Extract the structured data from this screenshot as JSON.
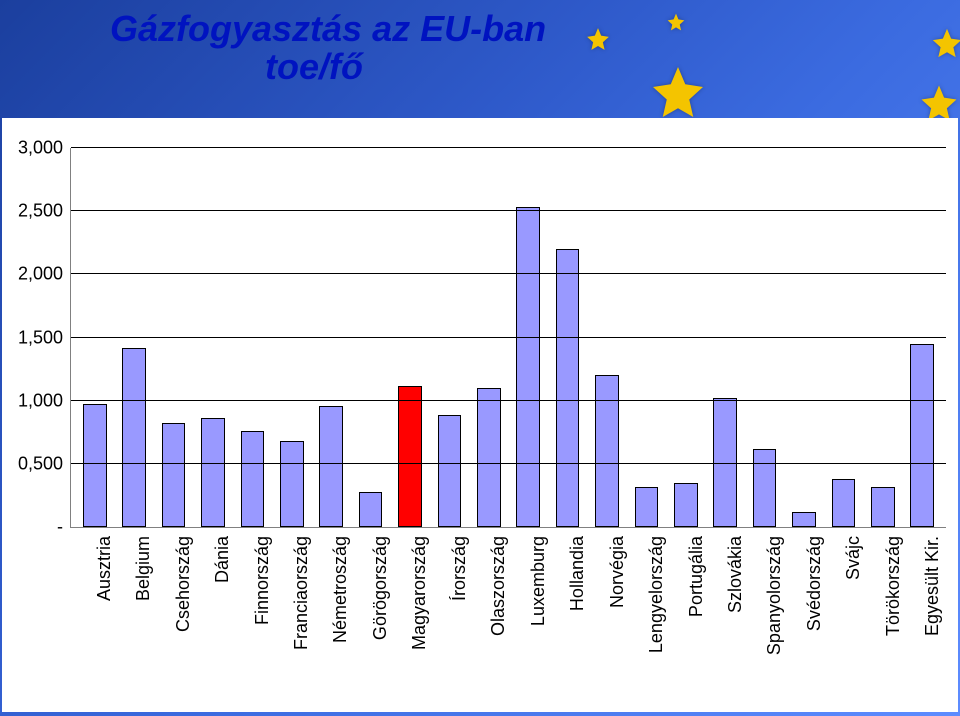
{
  "title_line1": "Gázfogyasztás az EU-ban",
  "title_line2": "toe/fő",
  "title_color": "#0013c0",
  "title_fontsize": 36,
  "chart": {
    "type": "bar",
    "ylim": [
      0,
      3.0
    ],
    "ytick_step": 0.5,
    "ytick_labels": [
      "-",
      "0,500",
      "1,000",
      "1,500",
      "2,000",
      "2,500",
      "3,000"
    ],
    "grid_color": "#000000",
    "axis_color": "#808080",
    "background_color": "#ffffff",
    "bar_width": 0.6,
    "default_bar_color": "#9999ff",
    "highlight_bar_color": "#ff0000",
    "bar_border_color": "#000000",
    "label_fontsize": 18,
    "categories": [
      "Ausztria",
      "Belgium",
      "Csehország",
      "Dánia",
      "Finnország",
      "Franciaország",
      "Németroszág",
      "Görögország",
      "Magyarország",
      "Írország",
      "Olaszország",
      "Luxemburg",
      "Hollandia",
      "Norvégia",
      "Lengyelország",
      "Portugália",
      "Szlovákia",
      "Spanyolország",
      "Svédország",
      "Svájc",
      "Törökország",
      "Egyesült Kir."
    ],
    "values": [
      0.97,
      1.42,
      0.82,
      0.86,
      0.76,
      0.68,
      0.96,
      0.28,
      1.12,
      0.89,
      1.1,
      2.53,
      2.2,
      1.2,
      0.32,
      0.35,
      1.02,
      0.62,
      0.12,
      0.38,
      0.32,
      1.45
    ],
    "highlight_index": 8
  },
  "backdrop": {
    "gradient_from": "#1b3f9e",
    "gradient_to": "#5d8cff",
    "star_color": "#f4c400"
  }
}
